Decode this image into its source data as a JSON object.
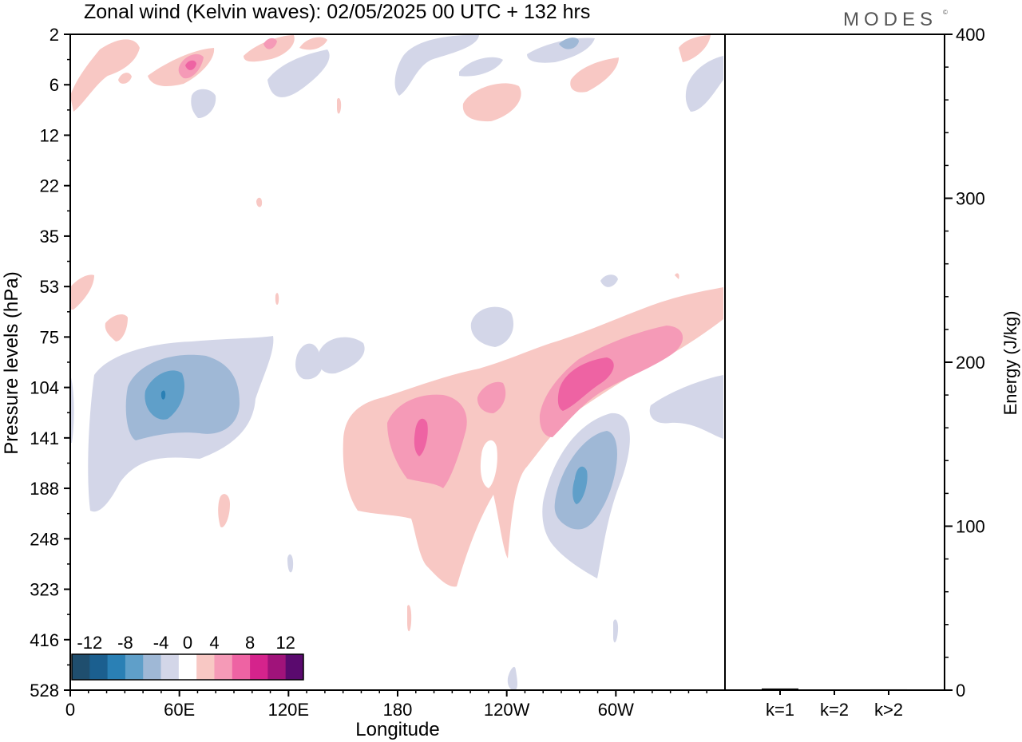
{
  "brand": {
    "name": "MODES",
    "mark": "©"
  },
  "chart_data": [
    {
      "type": "heatmap",
      "title": "Zonal wind (Kelvin waves):  02/05/2025  00 UTC  + 132 hrs",
      "xlabel": "Longitude",
      "ylabel": "Pressure levels (hPa)",
      "x_ticks": [
        "0",
        "60E",
        "120E",
        "180",
        "120W",
        "60W"
      ],
      "x_range_deg": [
        0,
        360
      ],
      "y_ticks": [
        "2",
        "6",
        "12",
        "22",
        "35",
        "53",
        "75",
        "104",
        "141",
        "188",
        "248",
        "323",
        "416",
        "528"
      ],
      "y_scale": "model levels, top to bottom",
      "colorbar": {
        "tick_labels": [
          "-12",
          "-8",
          "-4",
          "0",
          "4",
          "8",
          "12"
        ],
        "colors": [
          "#1f4e6e",
          "#1b5f8f",
          "#2a80b5",
          "#5f9fc9",
          "#9fb8d6",
          "#d3d6e8",
          "#ffffff",
          "#f8c8c4",
          "#f59ab7",
          "#ee63a3",
          "#d5238c",
          "#a0137a",
          "#5a0a6e"
        ]
      },
      "features": [
        {
          "sign": "negative",
          "max_abs": 8,
          "lon": 50,
          "level": 104
        },
        {
          "sign": "positive",
          "max_abs": 8,
          "lon": 193,
          "level": 141
        },
        {
          "sign": "positive",
          "max_abs": 8,
          "lon": 280,
          "level": 104
        },
        {
          "sign": "negative",
          "max_abs": 8,
          "lon": 285,
          "level": 188
        },
        {
          "sign": "positive",
          "max_abs": 6,
          "lon": 66,
          "level": 6
        }
      ]
    },
    {
      "type": "bar",
      "ylabel": "Energy (J/kg)",
      "categories": [
        "k=1",
        "k=2",
        "k>2"
      ],
      "values": [
        1,
        0,
        0.5
      ],
      "ylim": [
        0,
        400
      ],
      "y_ticks": [
        "0",
        "100",
        "200",
        "300",
        "400"
      ]
    }
  ]
}
